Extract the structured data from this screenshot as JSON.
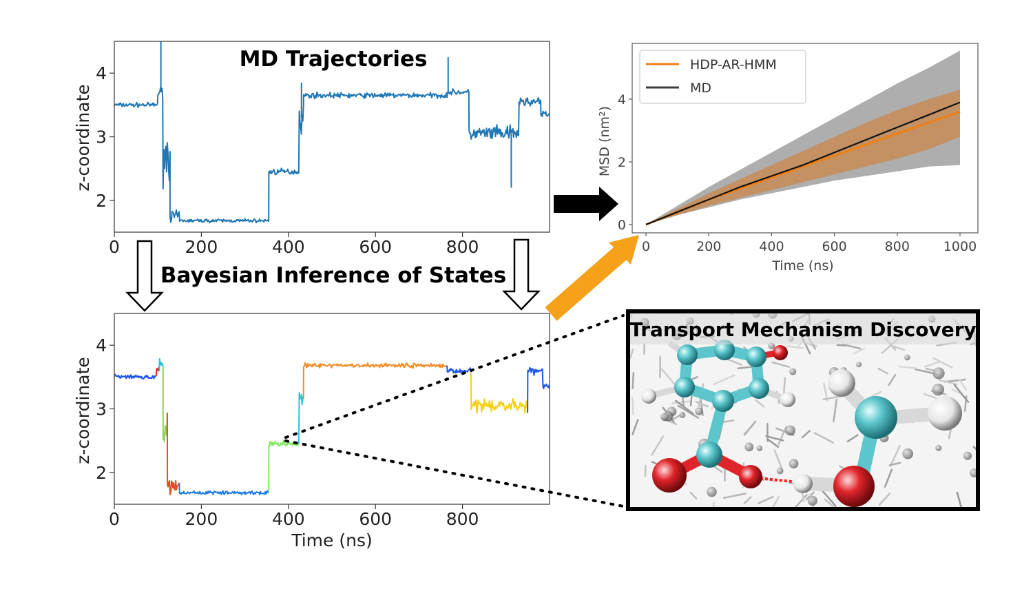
{
  "chart_data": [
    {
      "type": "line",
      "title": "MD Trajectories",
      "xlabel": "",
      "ylabel": "z-coordinate",
      "xlim": [
        0,
        1000
      ],
      "ylim": [
        1.5,
        4.5
      ],
      "xticks": [
        "0",
        "200",
        "400",
        "600",
        "800"
      ],
      "yticks": [
        "2",
        "3",
        "4"
      ],
      "grid": false,
      "series": [
        {
          "color": "#1f77b4",
          "segments": [
            {
              "x0": 0,
              "x1": 100,
              "y": 3.5,
              "noise": 0.05
            },
            {
              "x0": 100,
              "x1": 112,
              "y": 3.7,
              "noise": 0.12
            },
            {
              "x0": 112,
              "x1": 128,
              "y": 2.7,
              "noise": 0.6
            },
            {
              "x0": 128,
              "x1": 150,
              "y": 1.75,
              "noise": 0.12
            },
            {
              "x0": 150,
              "x1": 355,
              "y": 1.68,
              "noise": 0.04
            },
            {
              "x0": 355,
              "x1": 425,
              "y": 2.45,
              "noise": 0.07
            },
            {
              "x0": 425,
              "x1": 435,
              "y": 3.3,
              "noise": 0.35
            },
            {
              "x0": 435,
              "x1": 765,
              "y": 3.65,
              "noise": 0.06
            },
            {
              "x0": 765,
              "x1": 815,
              "y": 3.7,
              "noise": 0.06
            },
            {
              "x0": 815,
              "x1": 930,
              "y": 3.05,
              "noise": 0.17
            },
            {
              "x0": 930,
              "x1": 980,
              "y": 3.55,
              "noise": 0.1
            },
            {
              "x0": 980,
              "x1": 1000,
              "y": 3.35,
              "noise": 0.08
            }
          ],
          "spikes": [
            {
              "x": 107,
              "y": 4.5
            },
            {
              "x": 430,
              "y": 3.85
            },
            {
              "x": 767,
              "y": 4.25
            },
            {
              "x": 912,
              "y": 2.2
            }
          ]
        }
      ]
    },
    {
      "type": "line",
      "title": "",
      "xlabel": "Time (ns)",
      "ylabel": "z-coordinate",
      "xlim": [
        0,
        1000
      ],
      "ylim": [
        1.5,
        4.5
      ],
      "xticks": [
        "0",
        "200",
        "400",
        "600",
        "800"
      ],
      "yticks": [
        "2",
        "3",
        "4"
      ],
      "grid": false,
      "series": [
        {
          "segments": [
            {
              "x0": 0,
              "x1": 97,
              "y": 3.5,
              "noise": 0.05,
              "color": "#1c55e6"
            },
            {
              "x0": 97,
              "x1": 104,
              "y": 3.62,
              "noise": 0.05,
              "color": "#e0261e"
            },
            {
              "x0": 104,
              "x1": 112,
              "y": 3.7,
              "noise": 0.15,
              "color": "#26c6da"
            },
            {
              "x0": 112,
              "x1": 122,
              "y": 2.6,
              "noise": 0.5,
              "color": "#8bd35a"
            },
            {
              "x0": 122,
              "x1": 150,
              "y": 1.8,
              "noise": 0.15,
              "color": "#e0501e"
            },
            {
              "x0": 150,
              "x1": 355,
              "y": 1.68,
              "noise": 0.04,
              "color": "#1e7ae6"
            },
            {
              "x0": 355,
              "x1": 425,
              "y": 2.45,
              "noise": 0.07,
              "color": "#7ee85a"
            },
            {
              "x0": 425,
              "x1": 435,
              "y": 3.2,
              "noise": 0.35,
              "color": "#26c6da"
            },
            {
              "x0": 435,
              "x1": 765,
              "y": 3.68,
              "noise": 0.05,
              "color": "#f28c28"
            },
            {
              "x0": 765,
              "x1": 820,
              "y": 3.6,
              "noise": 0.06,
              "color": "#1c55e6"
            },
            {
              "x0": 820,
              "x1": 950,
              "y": 3.05,
              "noise": 0.15,
              "color": "#f5d016"
            },
            {
              "x0": 950,
              "x1": 985,
              "y": 3.6,
              "noise": 0.08,
              "color": "#1c55e6"
            },
            {
              "x0": 985,
              "x1": 1000,
              "y": 3.35,
              "noise": 0.08,
              "color": "#1c55e6"
            }
          ]
        }
      ]
    },
    {
      "type": "line",
      "title": "",
      "xlabel": "Time (ns)",
      "ylabel": "MSD (nm²)",
      "xlim": [
        0,
        1000
      ],
      "ylim": [
        0,
        5.5
      ],
      "xticks": [
        "0",
        "200",
        "400",
        "600",
        "800",
        "1000"
      ],
      "yticks": [
        "0",
        "2",
        "4"
      ],
      "legend": "top-left",
      "series": [
        {
          "name": "HDP-AR-HMM",
          "color": "#f07f14",
          "x": [
            0,
            100,
            200,
            300,
            400,
            500,
            600,
            700,
            800,
            900,
            1000
          ],
          "y": [
            0,
            0.4,
            0.8,
            1.15,
            1.5,
            1.85,
            2.2,
            2.55,
            2.9,
            3.25,
            3.6
          ],
          "band_low": [
            0,
            0.3,
            0.6,
            0.85,
            1.1,
            1.35,
            1.6,
            1.85,
            2.1,
            2.4,
            2.8
          ],
          "band_high": [
            0,
            0.5,
            1.0,
            1.45,
            1.9,
            2.35,
            2.8,
            3.25,
            3.65,
            4.0,
            4.3
          ]
        },
        {
          "name": "MD",
          "color": "#3c3c3c",
          "x": [
            0,
            100,
            200,
            300,
            400,
            500,
            600,
            700,
            800,
            900,
            1000
          ],
          "y": [
            0,
            0.4,
            0.8,
            1.2,
            1.55,
            1.9,
            2.3,
            2.7,
            3.1,
            3.5,
            3.9
          ],
          "band_low": [
            0,
            0.3,
            0.55,
            0.8,
            1.0,
            1.2,
            1.4,
            1.55,
            1.7,
            1.85,
            1.9
          ],
          "band_high": [
            0,
            0.6,
            1.2,
            1.75,
            2.3,
            2.85,
            3.4,
            3.95,
            4.5,
            5.0,
            5.55
          ]
        }
      ]
    }
  ],
  "labels": {
    "bayes": "Bayesian Inference of States",
    "transport": "Transport Mechanism Discovery"
  },
  "colors": {
    "arrow_orange": "#f5a11a",
    "arrow_black": "#000000"
  }
}
